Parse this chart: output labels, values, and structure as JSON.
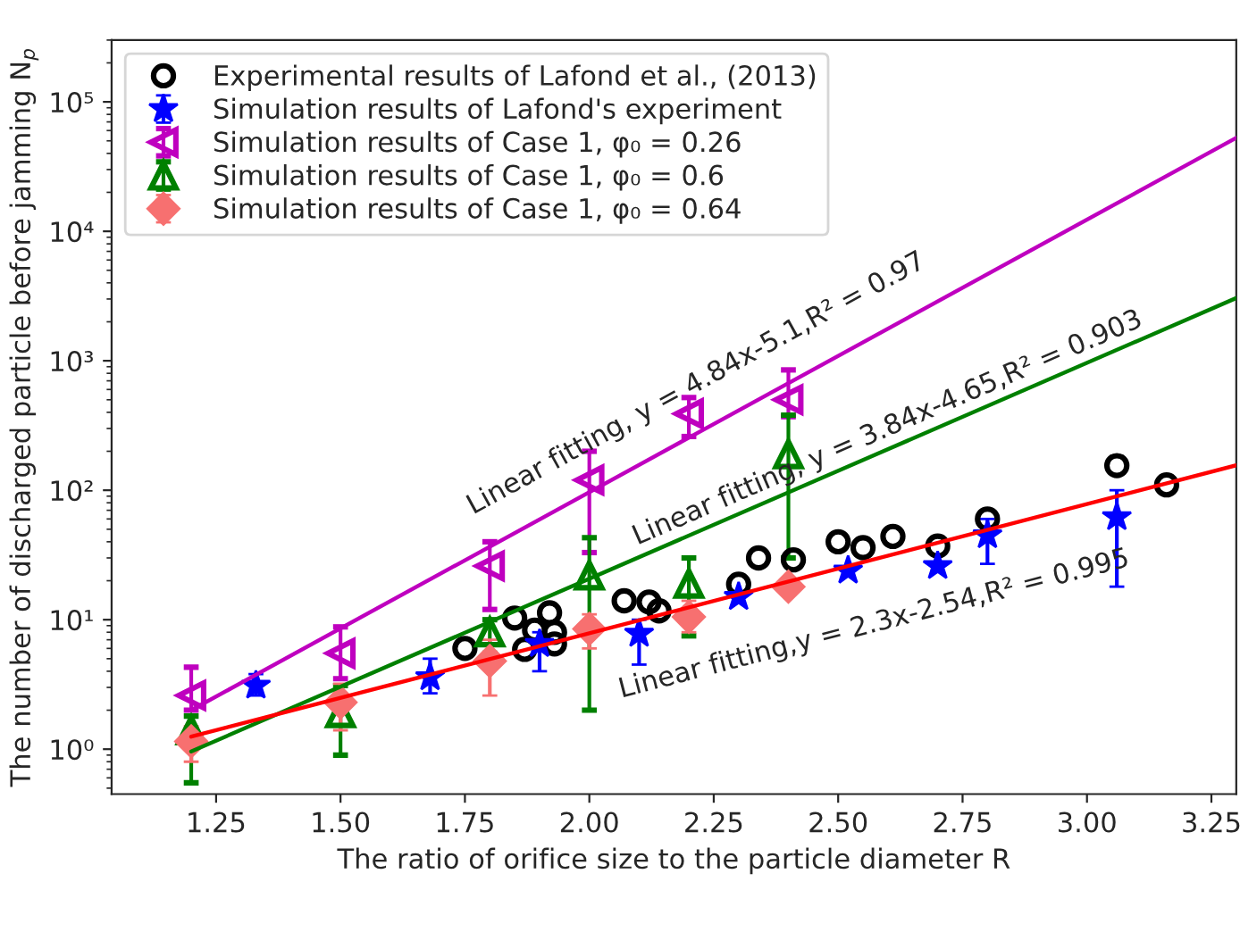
{
  "chart_data": {
    "type": "scatter",
    "xlabel": "The ratio of orifice size to the particle diameter R",
    "ylabel": "The number of discharged particle before jamming N$_{p}$",
    "log": "y",
    "legend": "top left",
    "grid": false,
    "xlim": [
      1.04,
      3.3
    ],
    "xticks": [
      {
        "value": 1.25,
        "label": "1.25"
      },
      {
        "value": 1.5,
        "label": "1.50"
      },
      {
        "value": 1.75,
        "label": "1.75"
      },
      {
        "value": 2.0,
        "label": "2.00"
      },
      {
        "value": 2.25,
        "label": "2.25"
      },
      {
        "value": 2.5,
        "label": "2.50"
      },
      {
        "value": 2.75,
        "label": "2.75"
      },
      {
        "value": 3.0,
        "label": "3.00"
      },
      {
        "value": 3.25,
        "label": "3.25"
      }
    ],
    "ylim": [
      0.45,
      300000
    ],
    "yticks": [
      {
        "value": 1,
        "label": "10⁰"
      },
      {
        "value": 10,
        "label": "10¹"
      },
      {
        "value": 100,
        "label": "10²"
      },
      {
        "value": 1000,
        "label": "10³"
      },
      {
        "value": 10000,
        "label": "10⁴"
      },
      {
        "value": 100000,
        "label": "10⁵"
      }
    ],
    "series": [
      {
        "name": "Experimental results of Lafond et al., (2013)",
        "color": "#000000",
        "marker": "circle",
        "x": [
          1.75,
          1.85,
          1.87,
          1.89,
          1.92,
          1.93,
          1.93,
          2.07,
          2.12,
          2.14,
          2.3,
          2.34,
          2.41,
          2.5,
          2.55,
          2.61,
          2.7,
          2.8,
          3.06,
          3.16
        ],
        "values": [
          6.0,
          10.3,
          5.9,
          8.3,
          11.3,
          8.0,
          6.5,
          14,
          13.7,
          11.7,
          18.8,
          30,
          29,
          40,
          36,
          44,
          37,
          60,
          155,
          110
        ]
      },
      {
        "name": "Simulation results of Lafond's experiment",
        "color": "#0000ff",
        "marker": "star",
        "x": [
          1.33,
          1.68,
          1.9,
          2.1,
          2.3,
          2.52,
          2.7,
          2.8,
          3.06
        ],
        "values": [
          3.1,
          3.6,
          6.5,
          7.8,
          15,
          24,
          26,
          45,
          62
        ],
        "errors": [
          [
            2.6,
            3.8
          ],
          [
            2.7,
            5
          ],
          [
            4,
            8
          ],
          [
            4.5,
            10
          ],
          null,
          null,
          null,
          [
            27,
            60
          ],
          [
            18,
            100
          ]
        ]
      },
      {
        "name": "Simulation results of Case 1, φ₀ = 0.26",
        "color": "#bf00bf",
        "marker": "triangle-left",
        "x": [
          1.2,
          1.5,
          1.8,
          2.0,
          2.2,
          2.4
        ],
        "values": [
          2.6,
          5.5,
          26,
          120,
          390,
          500
        ],
        "errors": [
          [
            2.0,
            4.3
          ],
          [
            3.5,
            8.8
          ],
          [
            12,
            40
          ],
          [
            33,
            200
          ],
          [
            260,
            520
          ],
          [
            370,
            850
          ]
        ]
      },
      {
        "name": "Simulation results of Case 1, φ₀ = 0.6",
        "color": "#008000",
        "marker": "triangle",
        "x": [
          1.2,
          1.5,
          1.8,
          2.0,
          2.2,
          2.4
        ],
        "values": [
          1.4,
          1.9,
          8,
          22,
          19,
          190
        ],
        "errors": [
          [
            0.55,
            1.8
          ],
          [
            0.9,
            3.1
          ],
          [
            5.5,
            10
          ],
          [
            2,
            43
          ],
          [
            7.5,
            30
          ],
          [
            30,
            380
          ]
        ]
      },
      {
        "name": "Simulation results of Case 1, φ₀ = 0.64",
        "color": "#f77070",
        "marker": "diamond",
        "x": [
          1.2,
          1.5,
          1.8,
          2.0,
          2.2,
          2.4
        ],
        "values": [
          1.15,
          2.3,
          4.8,
          8.5,
          10.5,
          18
        ],
        "errors": [
          [
            0.8,
            1.5
          ],
          [
            1.4,
            3.2
          ],
          [
            2.6,
            7
          ],
          [
            6,
            11
          ],
          [
            8,
            14
          ],
          null
        ]
      },
      {
        "type": "line",
        "color": "#bf00bf",
        "x": [
          1.2,
          3.3
        ],
        "values": [
          2.0,
          52700
        ]
      },
      {
        "type": "line",
        "color": "#008000",
        "x": [
          1.2,
          3.3
        ],
        "values": [
          0.96,
          3050
        ]
      },
      {
        "type": "line",
        "color": "#ff0000",
        "x": [
          1.2,
          3.3
        ],
        "values": [
          1.25,
          156
        ]
      }
    ],
    "annotations": [
      "Linear fitting, y = 4.84x-5.1,R² = 0.97",
      "Linear fitting, y = 3.84x-4.65,R² = 0.903",
      "Linear fitting,y = 2.3x-2.54,R² = 0.995"
    ]
  }
}
